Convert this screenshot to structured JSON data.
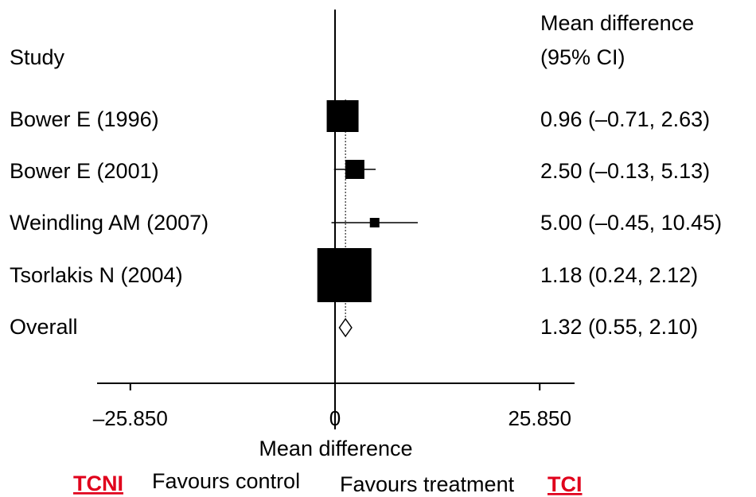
{
  "chart_data": {
    "type": "forest",
    "column_headers": {
      "study": "Study",
      "effect_line1": "Mean difference",
      "effect_line2": "(95% CI)"
    },
    "studies": [
      {
        "label": "Bower E (1996)",
        "estimate": 0.96,
        "lower": -0.71,
        "upper": 2.63,
        "ci_text": "0.96 (–0.71, 2.63)"
      },
      {
        "label": "Bower E (2001)",
        "estimate": 2.5,
        "lower": -0.13,
        "upper": 5.13,
        "ci_text": "2.50 (–0.13, 5.13)"
      },
      {
        "label": "Weindling AM (2007)",
        "estimate": 5.0,
        "lower": -0.45,
        "upper": 10.45,
        "ci_text": "5.00 (–0.45, 10.45)"
      },
      {
        "label": "Tsorlakis N (2004)",
        "estimate": 1.18,
        "lower": 0.24,
        "upper": 2.12,
        "ci_text": "1.18 (0.24, 2.12)"
      }
    ],
    "overall": {
      "label": "Overall",
      "estimate": 1.32,
      "lower": 0.55,
      "upper": 2.1,
      "ci_text": "1.32 (0.55, 2.10)"
    },
    "xlim": [
      -30,
      30
    ],
    "xticks": [
      -25.85,
      0,
      25.85
    ],
    "xtick_labels": [
      "–25.850",
      "0",
      "25.850"
    ],
    "xlabel": "Mean difference",
    "favours_left": "Favours control",
    "favours_right": "Favours treatment",
    "tag_left": "TCNI",
    "tag_right": "TCI",
    "colors": {
      "marks": "#000000",
      "tags": "#e0001b"
    },
    "grid": false
  }
}
